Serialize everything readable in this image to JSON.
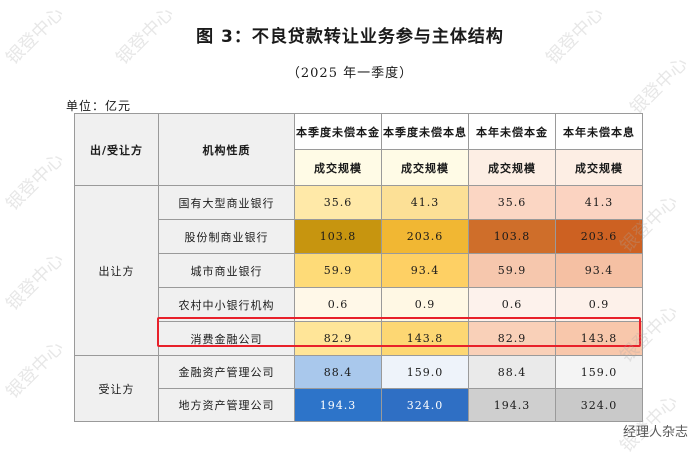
{
  "title": "图 3：不良贷款转让业务参与主体结构",
  "subtitle": "（2025 年一季度）",
  "unit": "单位：亿元",
  "headers": {
    "party": "出/受让方",
    "institution": "机构性质",
    "col1_line1": "本季度未偿本金",
    "col2_line1": "本季度未偿本息",
    "col3_line1": "本年未偿本金",
    "col4_line1": "本年未偿本息",
    "line2": "成交规模"
  },
  "groups": [
    {
      "label": "出让方",
      "rows": [
        {
          "name": "国有大型商业银行",
          "values": [
            "35.6",
            "41.3",
            "35.6",
            "41.3"
          ]
        },
        {
          "name": "股份制商业银行",
          "values": [
            "103.8",
            "203.6",
            "103.8",
            "203.6"
          ]
        },
        {
          "name": "城市商业银行",
          "values": [
            "59.9",
            "93.4",
            "59.9",
            "93.4"
          ]
        },
        {
          "name": "农村中小银行机构",
          "values": [
            "0.6",
            "0.9",
            "0.6",
            "0.9"
          ]
        },
        {
          "name": "消费金融公司",
          "values": [
            "82.9",
            "143.8",
            "82.9",
            "143.8"
          ]
        }
      ]
    },
    {
      "label": "受让方",
      "rows": [
        {
          "name": "金融资产管理公司",
          "values": [
            "88.4",
            "159.0",
            "88.4",
            "159.0"
          ]
        },
        {
          "name": "地方资产管理公司",
          "values": [
            "194.3",
            "324.0",
            "194.3",
            "324.0"
          ]
        }
      ]
    }
  ],
  "colors": {
    "header_bg": "#fffbe6",
    "label_bg": "#f0f0f0",
    "highlight_border": "#e8202a",
    "cells": [
      [
        "#ffe9a8",
        "#fce096",
        "#fbd6c3",
        "#fbd3c1"
      ],
      [
        "#c7950f",
        "#f1b733",
        "#cf6e2a",
        "#cd6122"
      ],
      [
        "#fedb78",
        "#fed064",
        "#f6c7ad",
        "#f5c0a3"
      ],
      [
        "#fff8e8",
        "#fff8e4",
        "#fdf2ec",
        "#fdf1ea"
      ],
      [
        "#ffe598",
        "#fdd773",
        "#f9d0b8",
        "#f8c7ab"
      ],
      [
        "#a9c8ec",
        "#eef3fa",
        "#eaeaea",
        "#f4f4f4"
      ],
      [
        "#2d74c9",
        "#2f6fc4",
        "#cfcfcf",
        "#c9c9c9"
      ]
    ],
    "dark_text_cells": [
      [
        6,
        0
      ],
      [
        6,
        1
      ]
    ]
  },
  "watermarks": [
    "银登中心",
    "银登中心",
    "银登中心",
    "银登中心",
    "银登中心",
    "银登中心",
    "银登中心",
    "银登中心",
    "银登中心",
    "银登中心"
  ],
  "credit": "经理人杂志"
}
